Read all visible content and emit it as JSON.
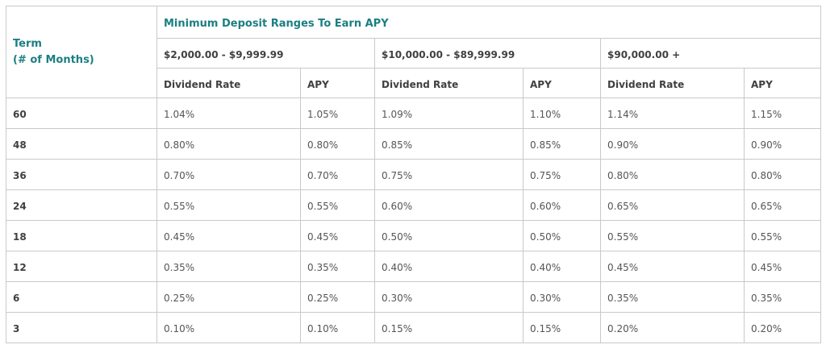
{
  "header": {
    "term_line1": "Term",
    "term_line2": "(# of Months)",
    "title": "Minimum Deposit Ranges To Earn APY",
    "ranges": [
      "$2,000.00 - $9,999.99",
      "$10,000.00 - $89,999.99",
      "$90,000.00 +"
    ],
    "dividend_label": "Dividend Rate",
    "apy_label": "APY"
  },
  "rows": [
    {
      "term": "60",
      "values": [
        "1.04%",
        "1.05%",
        "1.09%",
        "1.10%",
        "1.14%",
        "1.15%"
      ]
    },
    {
      "term": "48",
      "values": [
        "0.80%",
        "0.80%",
        "0.85%",
        "0.85%",
        "0.90%",
        "0.90%"
      ]
    },
    {
      "term": "36",
      "values": [
        "0.70%",
        "0.70%",
        "0.75%",
        "0.75%",
        "0.80%",
        "0.80%"
      ]
    },
    {
      "term": "24",
      "values": [
        "0.55%",
        "0.55%",
        "0.60%",
        "0.60%",
        "0.65%",
        "0.65%"
      ]
    },
    {
      "term": "18",
      "values": [
        "0.45%",
        "0.45%",
        "0.50%",
        "0.50%",
        "0.55%",
        "0.55%"
      ]
    },
    {
      "term": "12",
      "values": [
        "0.35%",
        "0.35%",
        "0.40%",
        "0.40%",
        "0.45%",
        "0.45%"
      ]
    },
    {
      "term": "6",
      "values": [
        "0.25%",
        "0.25%",
        "0.30%",
        "0.30%",
        "0.35%",
        "0.35%"
      ]
    },
    {
      "term": "3",
      "values": [
        "0.10%",
        "0.10%",
        "0.15%",
        "0.15%",
        "0.20%",
        "0.20%"
      ]
    }
  ]
}
